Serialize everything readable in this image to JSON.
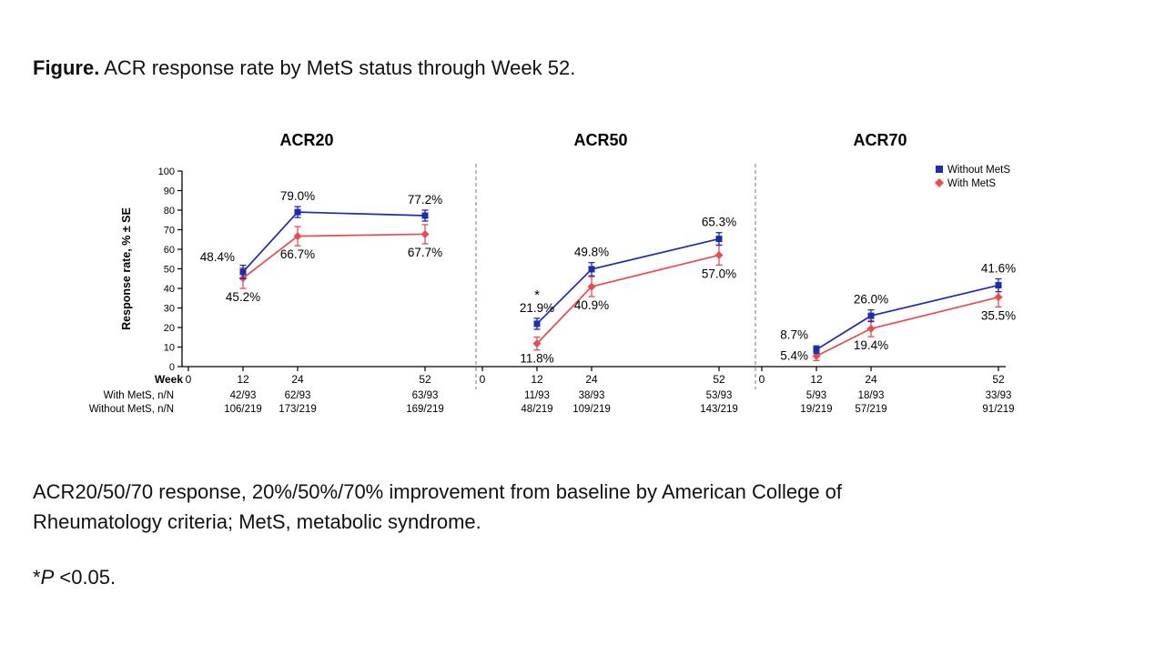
{
  "page": {
    "title_bold": "Figure.",
    "title_rest": " ACR response rate by MetS status through Week 52.",
    "caption": "ACR20/50/70 response, 20%/50%/70% improvement from baseline by American College of Rheumatology criteria; MetS, metabolic syndrome.",
    "footnote": {
      "star": "*",
      "p": "P",
      "rest": " <0.05."
    }
  },
  "chart_data": {
    "type": "line",
    "ylabel": "Response rate, % ± SE",
    "xlabel_row": "Week",
    "ylim": [
      0,
      100
    ],
    "ytick_step": 10,
    "weeks": [
      0,
      12,
      24,
      52
    ],
    "data_weeks": [
      12,
      24,
      52
    ],
    "grid": "off",
    "legend_position": "top-right",
    "legend": [
      {
        "name": "Without MetS",
        "color": "#1d2bb2",
        "marker": "square"
      },
      {
        "name": "With MetS",
        "color": "#ea4a50",
        "marker": "diamond"
      }
    ],
    "row_labels": [
      "With MetS, n/N",
      "Without MetS, n/N"
    ],
    "panels": [
      {
        "title": "ACR20",
        "series": [
          {
            "name": "Without MetS",
            "values": [
              48.4,
              79.0,
              77.2
            ],
            "se": [
              3.4,
              2.8,
              2.8
            ],
            "point_labels": [
              "48.4%",
              "79.0%",
              "77.2%"
            ],
            "label_pos": [
              "left-up",
              "above",
              "above"
            ]
          },
          {
            "name": "With MetS",
            "values": [
              45.2,
              66.7,
              67.7
            ],
            "se": [
              5.2,
              4.9,
              4.9
            ],
            "point_labels": [
              "45.2%",
              "66.7%",
              "67.7%"
            ],
            "label_pos": [
              "below",
              "below",
              "below"
            ]
          }
        ],
        "nN": [
          [
            "42/93",
            "62/93",
            "63/93"
          ],
          [
            "106/219",
            "173/219",
            "169/219"
          ]
        ]
      },
      {
        "title": "ACR50",
        "star": {
          "series": 0,
          "index": 0,
          "text": "*"
        },
        "series": [
          {
            "name": "Without MetS",
            "values": [
              21.9,
              49.8,
              65.3
            ],
            "se": [
              2.8,
              3.4,
              3.2
            ],
            "point_labels": [
              "21.9%",
              "49.8%",
              "65.3%"
            ],
            "label_pos": [
              "above",
              "above",
              "above"
            ]
          },
          {
            "name": "With MetS",
            "values": [
              11.8,
              40.9,
              57.0
            ],
            "se": [
              3.3,
              5.1,
              5.1
            ],
            "point_labels": [
              "11.8%",
              "40.9%",
              "57.0%"
            ],
            "label_pos": [
              "below",
              "below",
              "below"
            ]
          }
        ],
        "nN": [
          [
            "11/93",
            "38/93",
            "53/93"
          ],
          [
            "48/219",
            "109/219",
            "143/219"
          ]
        ]
      },
      {
        "title": "ACR70",
        "series": [
          {
            "name": "Without MetS",
            "values": [
              8.7,
              26.0,
              41.6
            ],
            "se": [
              1.9,
              3.0,
              3.3
            ],
            "point_labels": [
              "8.7%",
              "26.0%",
              "41.6%"
            ],
            "label_pos": [
              "left-up",
              "above",
              "above"
            ]
          },
          {
            "name": "With MetS",
            "values": [
              5.4,
              19.4,
              35.5
            ],
            "se": [
              2.3,
              4.1,
              5.0
            ],
            "point_labels": [
              "5.4%",
              "19.4%",
              "35.5%"
            ],
            "label_pos": [
              "left",
              "below",
              "below"
            ]
          }
        ],
        "nN": [
          [
            "5/93",
            "18/93",
            "33/93"
          ],
          [
            "19/219",
            "57/219",
            "91/219"
          ]
        ]
      }
    ]
  }
}
